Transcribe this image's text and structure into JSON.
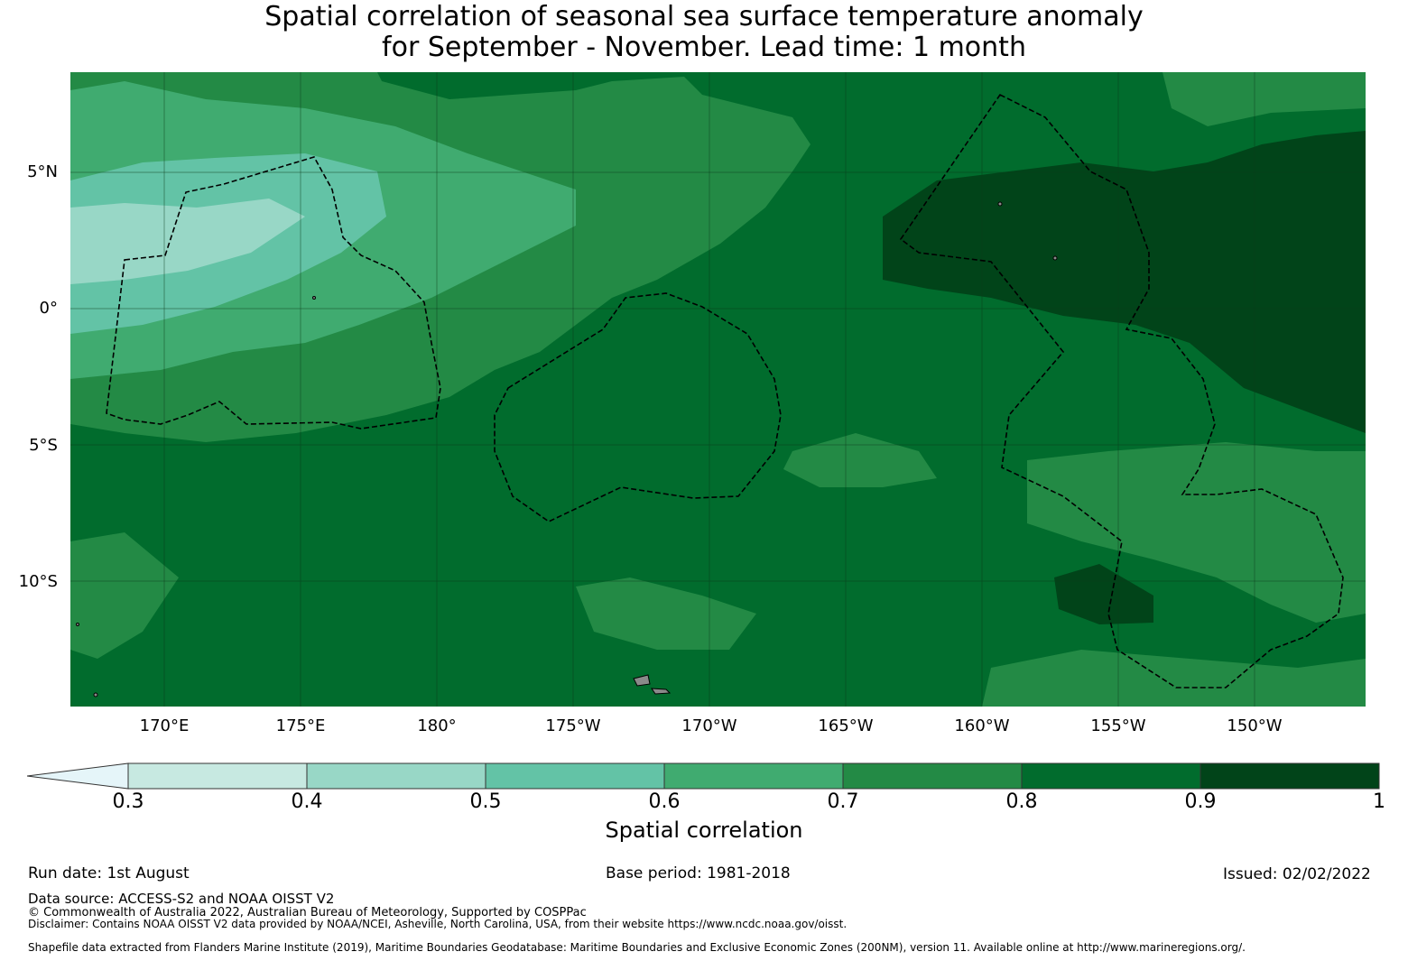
{
  "title_line1": "Spatial correlation of seasonal sea surface temperature anomaly",
  "title_line2": "for September - November. Lead time: 1 month",
  "lat_labels": [
    "5°N",
    "0°",
    "5°S",
    "10°S"
  ],
  "lon_labels": [
    "170°E",
    "175°E",
    "180°",
    "175°W",
    "170°W",
    "165°W",
    "160°W",
    "155°W",
    "150°W"
  ],
  "colorbar": {
    "ticks": [
      "0.3",
      "0.4",
      "0.5",
      "0.6",
      "0.7",
      "0.8",
      "0.9",
      "1"
    ],
    "colors": [
      "#c7e9e1",
      "#98d7c6",
      "#63c3a6",
      "#40ab70",
      "#238a45",
      "#016c2d",
      "#014419"
    ],
    "extend_color": "#e5f5f9",
    "label": "Spatial correlation"
  },
  "footer": {
    "run_date": "Run date: 1st August",
    "base_period": "Base period: 1981-2018",
    "issued": "Issued: 02/02/2022",
    "data_source": "Data source: ACCESS-S2 and NOAA OISST V2",
    "copyright": "© Commonwealth of Australia 2022, Australian Bureau of Meteorology, Supported by COSPPac",
    "disclaimer": "Disclaimer: Contains NOAA OISST V2 data provided by NOAA/NCEI, Asheville, North Carolina, USA, from their website https://www.ncdc.noaa.gov/oisst.",
    "shapefile": "Shapefile data extracted from Flanders Marine Institute (2019), Maritime Boundaries Geodatabase: Maritime Boundaries and Exclusive Economic Zones (200NM), version 11. Available online at http://www.marineregions.org/."
  }
}
